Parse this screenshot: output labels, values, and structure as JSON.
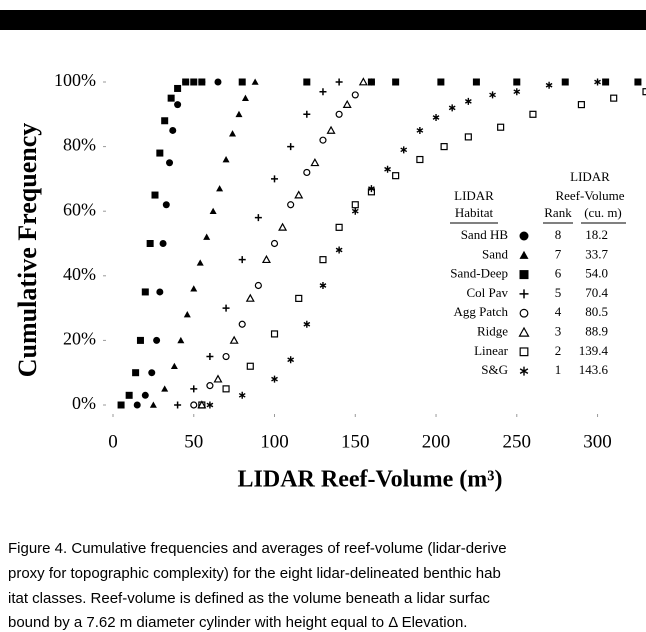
{
  "chart_data": {
    "type": "scatter",
    "ylabel": "Cumulative Frequency",
    "xlabel": "LIDAR Reef-Volume (m³)",
    "xlim": [
      0,
      330
    ],
    "ylim": [
      0,
      100
    ],
    "xticks": [
      0,
      50,
      100,
      150,
      200,
      250,
      300
    ],
    "yticks": [
      {
        "value": 0,
        "label": "0%"
      },
      {
        "value": 20,
        "label": "20%"
      },
      {
        "value": 40,
        "label": "40%"
      },
      {
        "value": 60,
        "label": "60%"
      },
      {
        "value": 80,
        "label": "80%"
      },
      {
        "value": 100,
        "label": "100%"
      }
    ],
    "legend_headers": {
      "group_top": "LIDAR",
      "group_bottom": "Reef-Volume",
      "habitat_top": "LIDAR",
      "habitat_bottom": "Habitat",
      "rank": "Rank",
      "volume": "(cu. m)"
    },
    "series": [
      {
        "name": "Sand HB",
        "marker": "circle",
        "color": "#000000",
        "rank": 8,
        "volume": 18.2,
        "x": [
          15,
          20,
          24,
          27,
          29,
          31,
          33,
          35,
          37,
          40,
          45,
          55,
          65
        ],
        "values": [
          0,
          3,
          10,
          20,
          35,
          50,
          62,
          75,
          85,
          93,
          100,
          100,
          100
        ]
      },
      {
        "name": "Sand",
        "marker": "triangle",
        "color": "#000000",
        "rank": 7,
        "volume": 33.7,
        "x": [
          25,
          32,
          38,
          42,
          46,
          50,
          54,
          58,
          62,
          66,
          70,
          74,
          78,
          82,
          88
        ],
        "values": [
          0,
          5,
          12,
          20,
          28,
          36,
          44,
          52,
          60,
          67,
          76,
          84,
          90,
          95,
          100
        ]
      },
      {
        "name": "Sand-Deep",
        "marker": "square",
        "color": "#000000",
        "rank": 6,
        "volume": 54.0,
        "volume_label": "54.0",
        "x": [
          5,
          10,
          14,
          17,
          20,
          23,
          26,
          29,
          32,
          36,
          40,
          45,
          50,
          55,
          80,
          120,
          160,
          175,
          203,
          225,
          250,
          280,
          305,
          325
        ],
        "values": [
          0,
          3,
          10,
          20,
          35,
          50,
          65,
          78,
          88,
          95,
          98,
          100,
          100,
          100,
          100,
          100,
          100,
          100,
          100,
          100,
          100,
          100,
          100,
          100
        ]
      },
      {
        "name": "Col Pav",
        "marker": "plus",
        "color": "#000000",
        "rank": 5,
        "volume": 70.4,
        "x": [
          40,
          50,
          60,
          70,
          80,
          90,
          100,
          110,
          120,
          130,
          140
        ],
        "values": [
          0,
          5,
          15,
          30,
          45,
          58,
          70,
          80,
          90,
          97,
          100
        ]
      },
      {
        "name": "Agg Patch",
        "marker": "ocircle",
        "color": "#000000",
        "rank": 4,
        "volume": 80.5,
        "x": [
          50,
          60,
          70,
          80,
          90,
          100,
          110,
          120,
          130,
          140,
          150,
          160
        ],
        "values": [
          0,
          6,
          15,
          25,
          37,
          50,
          62,
          72,
          82,
          90,
          96,
          100
        ]
      },
      {
        "name": "Ridge",
        "marker": "otriangle",
        "color": "#000000",
        "rank": 3,
        "volume": 88.9,
        "x": [
          55,
          65,
          75,
          85,
          95,
          105,
          115,
          125,
          135,
          145,
          155
        ],
        "values": [
          0,
          8,
          20,
          33,
          45,
          55,
          65,
          75,
          85,
          93,
          100
        ]
      },
      {
        "name": "Linear",
        "marker": "osquare",
        "color": "#000000",
        "rank": 2,
        "volume": 139.4,
        "x": [
          55,
          70,
          85,
          100,
          115,
          130,
          140,
          150,
          160,
          175,
          190,
          205,
          220,
          240,
          260,
          290,
          310,
          330
        ],
        "values": [
          0,
          5,
          12,
          22,
          33,
          45,
          55,
          62,
          66,
          71,
          76,
          80,
          83,
          86,
          90,
          93,
          95,
          97
        ]
      },
      {
        "name": "S&G",
        "marker": "star",
        "color": "#000000",
        "rank": 1,
        "volume": 143.6,
        "x": [
          60,
          80,
          100,
          110,
          120,
          130,
          140,
          150,
          160,
          170,
          180,
          190,
          200,
          210,
          220,
          235,
          250,
          270,
          300,
          325
        ],
        "values": [
          0,
          3,
          8,
          14,
          25,
          37,
          48,
          60,
          67,
          73,
          79,
          85,
          89,
          92,
          94,
          96,
          97,
          99,
          100,
          100
        ]
      }
    ]
  },
  "caption": [
    "Figure 4.  Cumulative frequencies and averages of reef-volume (lidar-derive",
    "proxy for topographic complexity) for the eight lidar-delineated benthic hab",
    "itat classes. Reef-volume is defined as the volume beneath a lidar surfac",
    "bound by a 7.62 m diameter cylinder with height equal to Δ Elevation."
  ]
}
